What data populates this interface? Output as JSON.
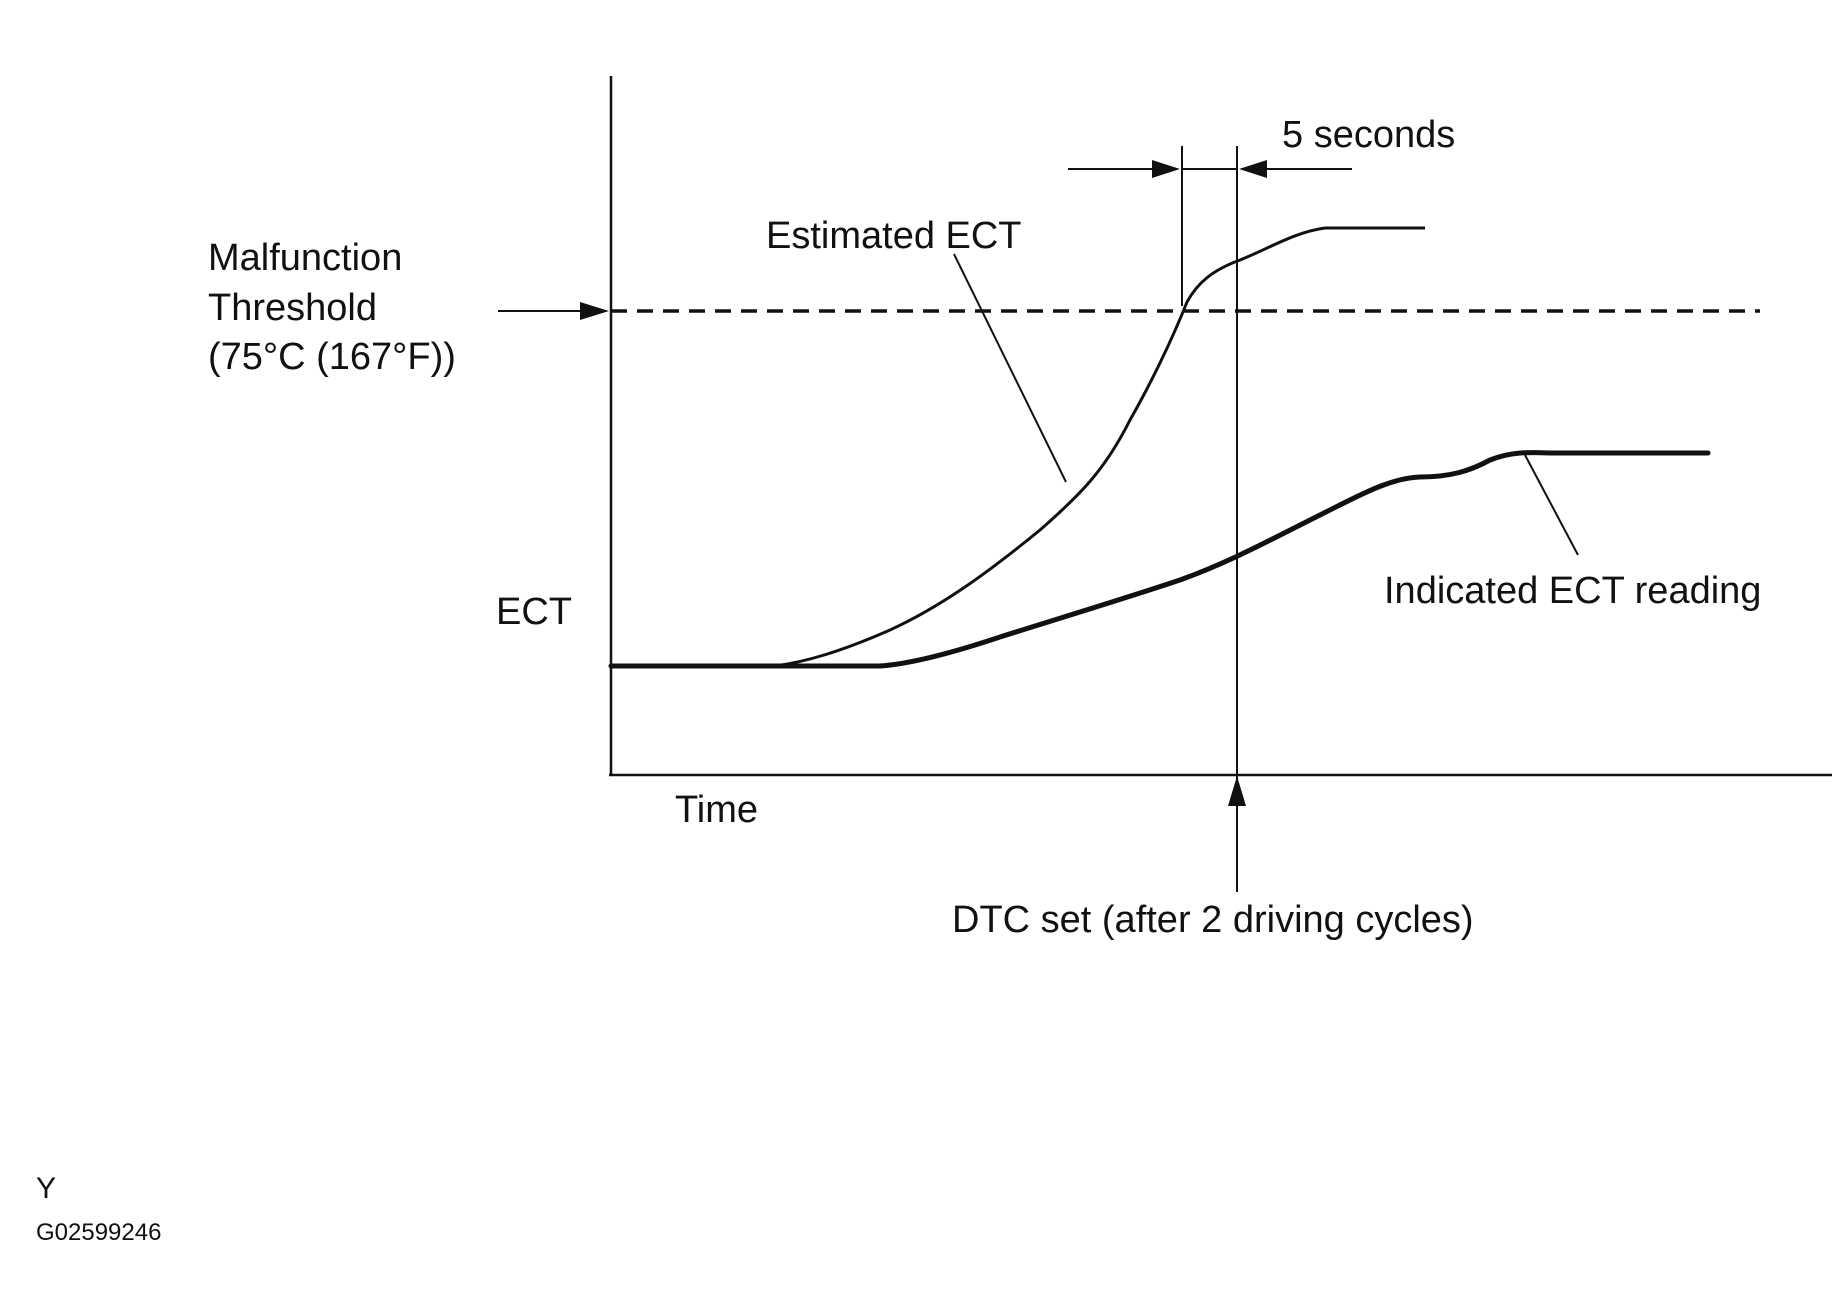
{
  "labels": {
    "five_seconds": "5 seconds",
    "estimated_ect": "Estimated ECT",
    "malfunction_line1": "Malfunction",
    "malfunction_line2": "Threshold",
    "malfunction_line3": "(75°C (167°F))",
    "y_axis": "ECT",
    "x_axis": "Time",
    "indicated_ect": "Indicated ECT reading",
    "dtc_set": "DTC set (after 2 driving cycles)"
  },
  "footer": {
    "view_letter": "Y",
    "figure_id": "G02599246"
  },
  "colors": {
    "ink": "#111111",
    "background": "#ffffff"
  }
}
